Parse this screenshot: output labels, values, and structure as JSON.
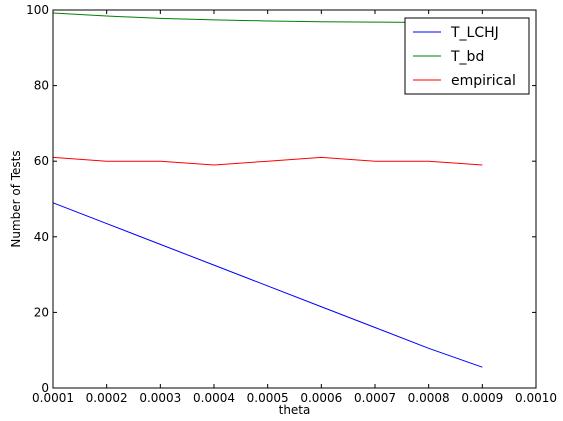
{
  "chart_data": {
    "type": "line",
    "title": "",
    "xlabel": "theta",
    "ylabel": "Number of Tests",
    "xlim": [
      0.0001,
      0.001
    ],
    "ylim": [
      0,
      100
    ],
    "xticks": [
      0.0001,
      0.0002,
      0.0003,
      0.0004,
      0.0005,
      0.0006,
      0.0007,
      0.0008,
      0.0009,
      0.001
    ],
    "xtick_labels": [
      "0.0001",
      "0.0002",
      "0.0003",
      "0.0004",
      "0.0005",
      "0.0006",
      "0.0007",
      "0.0008",
      "0.0009",
      "0.0010"
    ],
    "yticks": [
      0,
      20,
      40,
      60,
      80,
      100
    ],
    "ytick_labels": [
      "0",
      "20",
      "40",
      "60",
      "80",
      "100"
    ],
    "grid": false,
    "legend_position": "top-right",
    "x": [
      0.0001,
      0.0002,
      0.0003,
      0.0004,
      0.0005,
      0.0006,
      0.0007,
      0.0008,
      0.0009
    ],
    "series": [
      {
        "name": "T_LCHJ",
        "color": "#0000ff",
        "values": [
          49,
          43.5,
          38,
          32.5,
          27,
          21.5,
          16,
          10.5,
          5.5
        ]
      },
      {
        "name": "T_bd",
        "color": "#008000",
        "values": [
          99.2,
          98.4,
          97.8,
          97.4,
          97.1,
          96.9,
          96.8,
          96.7,
          96.6
        ]
      },
      {
        "name": "empirical",
        "color": "#ff0000",
        "values": [
          61,
          60,
          60,
          59,
          60,
          61,
          60,
          60,
          59
        ]
      }
    ]
  }
}
